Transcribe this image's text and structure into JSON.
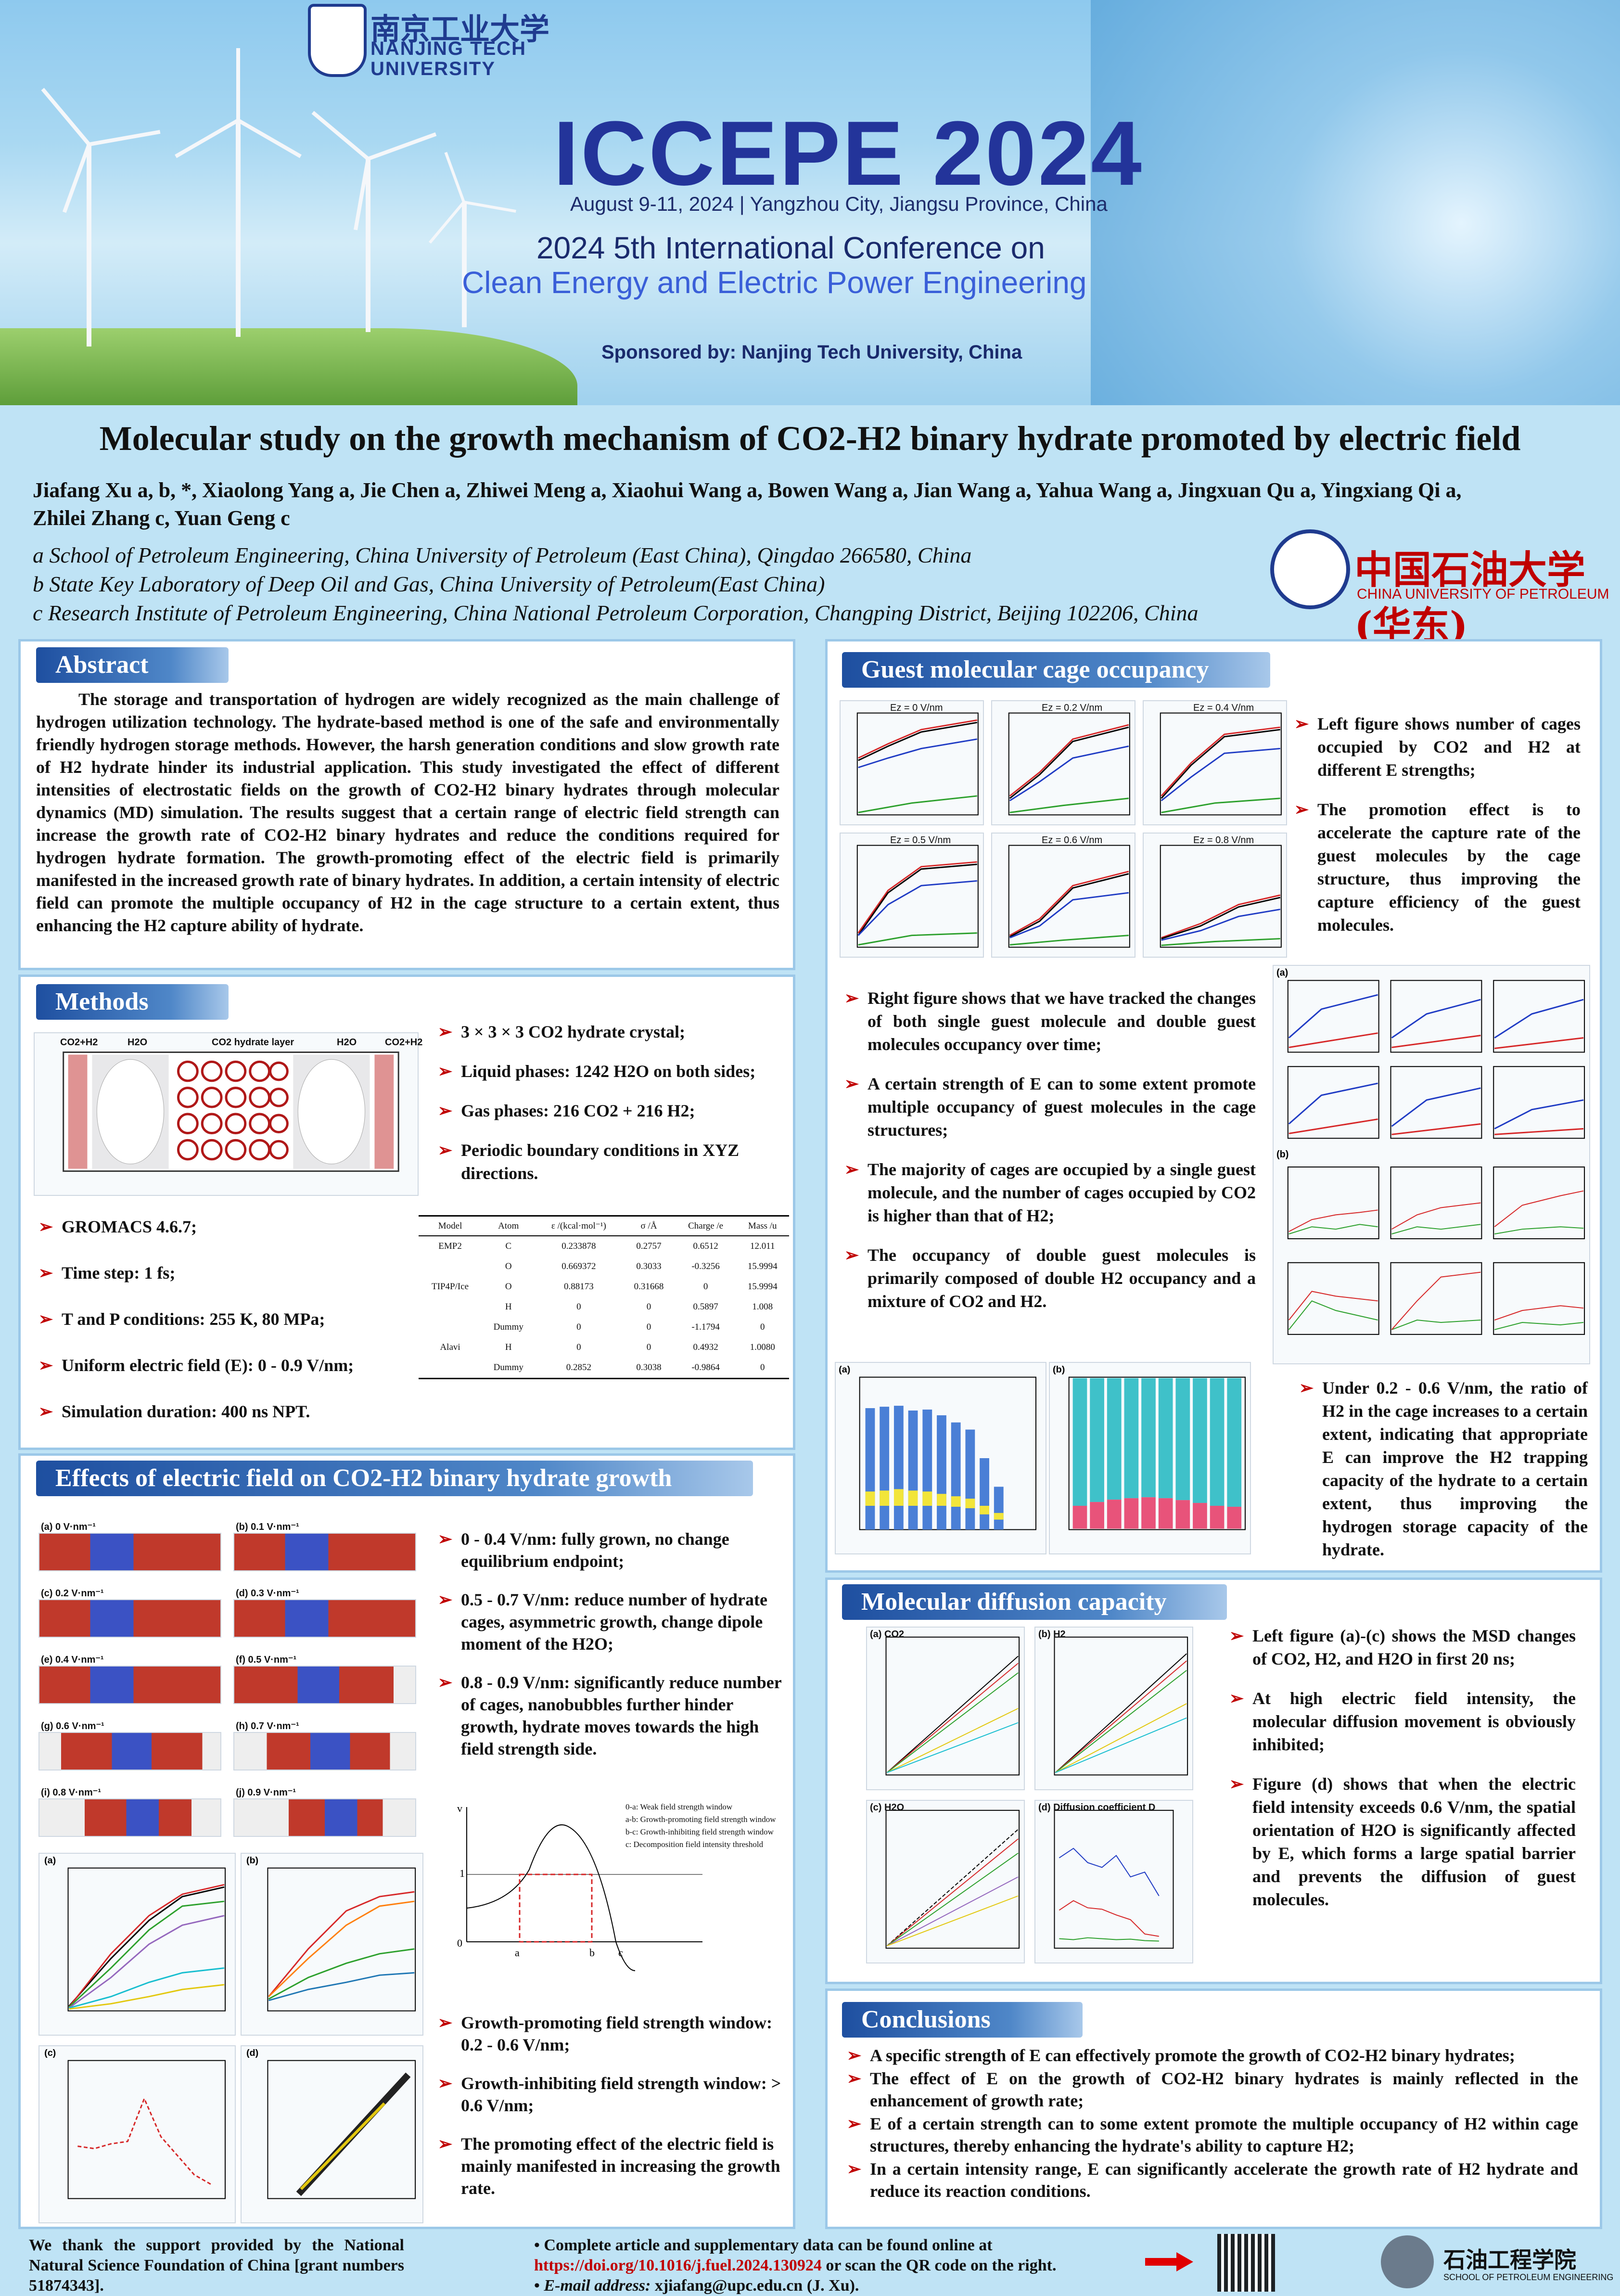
{
  "banner": {
    "university_cn": "南京工业大学",
    "university_en_1": "NANJING TECH",
    "university_en_2": "UNIVERSITY",
    "conference": "ICCEPE 2024",
    "date_place": "August 9-11, 2024 | Yangzhou City, Jiangsu Province, China",
    "line1": "2024 5th International Conference on",
    "line2": "Clean Energy and Electric Power Engineering",
    "sponsor": "Sponsored by: Nanjing Tech University, China"
  },
  "poster": {
    "title": "Molecular study on the growth mechanism of CO2-H2 binary hydrate promoted by electric field",
    "authors_1": "Jiafang Xu a, b, *, Xiaolong Yang a, Jie Chen a, Zhiwei Meng a, Xiaohui Wang a, Bowen Wang a, Jian Wang a, Yahua Wang a, Jingxuan Qu a, Yingxiang Qi a,",
    "authors_2": "Zhilei Zhang c, Yuan Geng c",
    "affil_a": "a School of Petroleum Engineering, China University of Petroleum (East China), Qingdao 266580, China",
    "affil_b": "b State Key Laboratory of Deep Oil and Gas, China University of Petroleum(East China)",
    "affil_c": "c Research Institute of Petroleum Engineering, China National Petroleum Corporation, Changping District, Beijing 102206, China",
    "cup_cn": "中国石油大学(华东)",
    "cup_en": "CHINA UNIVERSITY OF PETROLEUM"
  },
  "abstract": {
    "heading": "Abstract",
    "text": "The storage and transportation of hydrogen are widely recognized as the main challenge of hydrogen utilization technology. The hydrate-based method is one of the safe and environmentally friendly hydrogen storage methods. However, the harsh generation conditions and slow growth rate of H2 hydrate hinder its industrial application. This study investigated the effect of different intensities of electrostatic fields on the growth of CO2-H2 binary hydrates through molecular dynamics (MD) simulation. The results suggest that a certain range of electric field strength can increase the growth rate of CO2-H2 binary hydrates and reduce the conditions required for hydrogen hydrate formation. The growth-promoting effect of the electric field is primarily manifested in the increased growth rate of binary hydrates. In addition, a certain intensity of electric field can promote the multiple occupancy of H2 in the cage structure to a certain extent, thus enhancing the H2 capture ability of hydrate."
  },
  "methods": {
    "heading": "Methods",
    "top_bullets": [
      "3 × 3 × 3 CO2 hydrate crystal;",
      "Liquid phases: 1242 H2O on both sides;",
      "Gas phases: 216 CO2 + 216 H2;",
      "Periodic boundary conditions in XYZ directions."
    ],
    "left_bullets": [
      "GROMACS 4.6.7;",
      "Time step: 1 fs;",
      "T and P conditions: 255 K, 80 MPa;",
      "Uniform electric field (E): 0 - 0.9 V/nm;",
      "Simulation duration: 400 ns NPT."
    ],
    "fig_labels": [
      "CO2+H2",
      "H2O",
      "CO2 hydrate layer",
      "H2O",
      "CO2+H2"
    ],
    "table": {
      "headers": [
        "Model",
        "Atom",
        "ε /(kcal·mol⁻¹)",
        "σ /Å",
        "Charge /e",
        "Mass /u"
      ],
      "rows": [
        [
          "EMP2",
          "C",
          "0.233878",
          "0.2757",
          "0.6512",
          "12.011"
        ],
        [
          "",
          "O",
          "0.669372",
          "0.3033",
          "-0.3256",
          "15.9994"
        ],
        [
          "TIP4P/Ice",
          "O",
          "0.88173",
          "0.31668",
          "0",
          "15.9994"
        ],
        [
          "",
          "H",
          "0",
          "0",
          "0.5897",
          "1.008"
        ],
        [
          "",
          "Dummy",
          "0",
          "0",
          "-1.1794",
          "0"
        ],
        [
          "Alavi",
          "H",
          "0",
          "0",
          "0.4932",
          "1.0080"
        ],
        [
          "",
          "Dummy",
          "0.2852",
          "0.3038",
          "-0.9864",
          "0"
        ]
      ]
    }
  },
  "effects": {
    "heading": "Effects of electric field on CO2-H2 binary hydrate growth",
    "bullets_top": [
      "0 - 0.4 V/nm: fully grown, no change equilibrium endpoint;",
      "0.5 - 0.7 V/nm: reduce number of hydrate cages, asymmetric growth, change dipole moment of the H2O;",
      "0.8 - 0.9 V/nm: significantly reduce number of cages, nanobubbles further hinder growth, hydrate moves towards the high field strength side."
    ],
    "bullets_bottom": [
      "Growth-promoting field strength window: 0.2 - 0.6 V/nm;",
      "Growth-inhibiting field strength window: > 0.6 V/nm;",
      "The promoting effect of the electric field is mainly manifested in increasing the growth rate."
    ],
    "snapshot_labels": [
      "(a) 0 V·nm⁻¹",
      "(b) 0.1 V·nm⁻¹",
      "(c) 0.2 V·nm⁻¹",
      "(d) 0.3 V·nm⁻¹",
      "(e) 0.4 V·nm⁻¹",
      "(f) 0.5 V·nm⁻¹",
      "(g) 0.6 V·nm⁻¹",
      "(h) 0.7 V·nm⁻¹",
      "(i) 0.8 V·nm⁻¹",
      "(j) 0.9 V·nm⁻¹"
    ],
    "window_legend": [
      "0-a: Weak field strength window",
      "a-b: Growth-promoting field strength window",
      "b-c: Growth-inhibiting field strength window",
      "c: Decomposition field intensity threshold"
    ]
  },
  "guest": {
    "heading": "Guest molecular cage occupancy",
    "bullets_1": [
      "Left figure shows number of cages occupied by CO2 and H2 at different E strengths;",
      "The promotion effect is to accelerate the capture rate of the guest molecules by the cage structure, thus improving the capture efficiency of the guest molecules."
    ],
    "bullets_2": [
      "Right figure shows that we have tracked the changes of both single guest molecule and double guest molecules occupancy over time;",
      "A certain strength of E can to some extent promote multiple occupancy of guest molecules in the cage structures;",
      "The majority of cages are occupied by a single guest molecule, and the number of cages occupied by CO2 is higher than that of H2;",
      "The occupancy of double guest molecules is primarily composed of double H2 occupancy and a mixture of CO2 and H2."
    ],
    "bullets_3": [
      "Under 0.2 - 0.6 V/nm, the ratio of H2 in the cage increases to a certain extent, indicating that appropriate E can improve the H2 trapping capacity of the hydrate to a certain extent, thus improving the hydrogen storage capacity of the hydrate."
    ],
    "panel_titles": [
      "Ez = 0 V/nm",
      "Ez = 0.2 V/nm",
      "Ez = 0.4 V/nm",
      "Ez = 0.5 V/nm",
      "Ez = 0.6 V/nm",
      "Ez = 0.8 V/nm"
    ]
  },
  "diffusion": {
    "heading": "Molecular diffusion capacity",
    "bullets": [
      "Left figure (a)-(c) shows the MSD changes of CO2, H2, and H2O in first 20 ns;",
      "At high electric field intensity, the molecular diffusion movement is obviously inhibited;",
      "Figure (d) shows that when the electric field intensity exceeds 0.6 V/nm, the spatial orientation of H2O is significantly affected by E, which forms a large spatial barrier and prevents the diffusion of guest molecules."
    ],
    "panel_labels": [
      "(a) CO2",
      "(b) H2",
      "(c) H2O",
      "(d) Diffusion coefficient D"
    ]
  },
  "conclusions": {
    "heading": "Conclusions",
    "bullets": [
      "A specific strength of E can effectively promote the growth of CO2-H2 binary hydrates;",
      "The effect of E on the growth of CO2-H2 binary hydrates is mainly reflected in the enhancement of growth rate;",
      "E of a certain strength can to some extent promote the multiple occupancy of H2 within cage structures, thereby enhancing the hydrate's ability to capture H2;",
      "In a certain intensity range, E can significantly accelerate the growth rate of H2 hydrate and reduce its reaction conditions."
    ]
  },
  "footer": {
    "thanks": "We thank the support provided by the National Natural Science Foundation of China [grant numbers 51874343].",
    "link_pre": "Complete article and supplementary data can be found online at",
    "link": "https://doi.org/10.1016/j.fuel.2024.130924",
    "link_post": "or scan the QR code on the right.",
    "email_label": "E-mail address:",
    "email": "xjiafang@upc.edu.cn",
    "email_post": "(J. Xu).",
    "school_cn": "石油工程学院",
    "school_en": "SCHOOL OF PETROLEUM ENGINEERING"
  }
}
